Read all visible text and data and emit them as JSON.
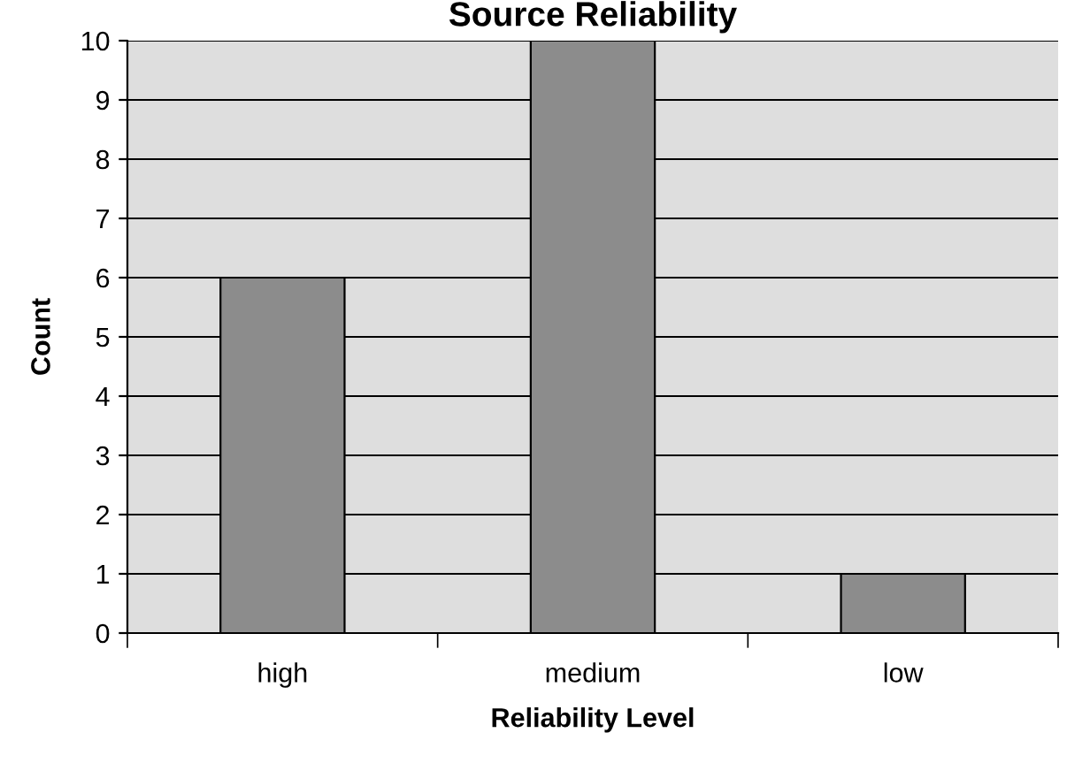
{
  "chart_data": {
    "type": "bar",
    "title": "Source Reliability",
    "xlabel": "Reliability Level",
    "ylabel": "Count",
    "categories": [
      "high",
      "medium",
      "low"
    ],
    "series": [
      {
        "color": "#8c8c8c",
        "values": [
          6,
          10,
          1
        ]
      }
    ],
    "ylim": [
      0,
      10
    ],
    "yticks": [
      0,
      1,
      2,
      3,
      4,
      5,
      6,
      7,
      8,
      9,
      10
    ],
    "grid": "y",
    "legend": false
  }
}
